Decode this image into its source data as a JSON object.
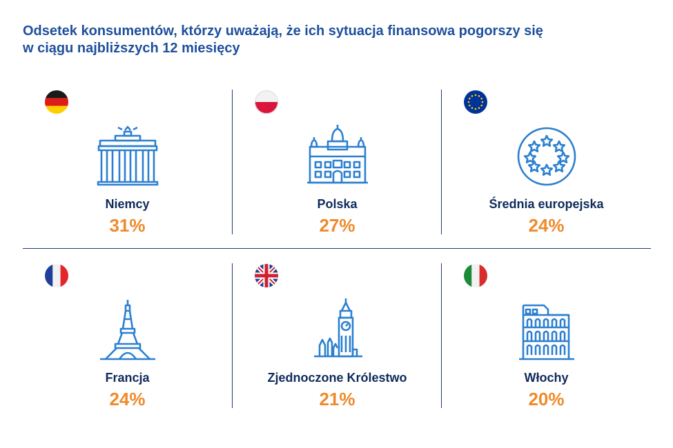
{
  "title": {
    "line1": "Odsetek konsumentów, którzy uważają, że ich sytuacja finansowa pogorszy się",
    "line2": "w ciągu najbliższych 12 miesięcy"
  },
  "colors": {
    "title": "#1e4f9c",
    "country": "#0f2a5a",
    "percent": "#ef8a2b",
    "icon_stroke": "#2b7fd0"
  },
  "items": [
    {
      "country": "Niemcy",
      "value": "31%",
      "flag_icon": "germany-flag-icon",
      "landmark_icon": "brandenburg-gate-icon"
    },
    {
      "country": "Polska",
      "value": "27%",
      "flag_icon": "poland-flag-icon",
      "landmark_icon": "wawel-castle-icon"
    },
    {
      "country": "Średnia europejska",
      "value": "24%",
      "flag_icon": "eu-flag-icon",
      "landmark_icon": "eu-stars-circle-icon"
    },
    {
      "country": "Francja",
      "value": "24%",
      "flag_icon": "france-flag-icon",
      "landmark_icon": "eiffel-tower-icon"
    },
    {
      "country": "Zjednoczone Królestwo",
      "value": "21%",
      "flag_icon": "uk-flag-icon",
      "landmark_icon": "big-ben-icon"
    },
    {
      "country": "Włochy",
      "value": "20%",
      "flag_icon": "italy-flag-icon",
      "landmark_icon": "colosseum-icon"
    }
  ]
}
